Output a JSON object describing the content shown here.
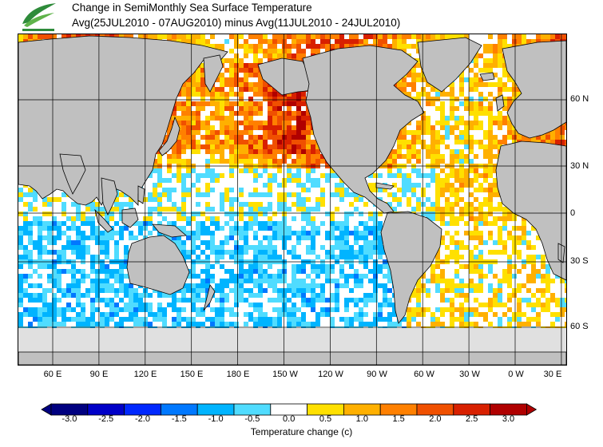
{
  "header": {
    "title_line1": "Change in SemiMonthly Sea Surface Temperature",
    "title_line2": "Avg(25JUL2010 - 07AUG2010) minus Avg(11JUL2010 - 24JUL2010)"
  },
  "map": {
    "land_color": "#c0c0c0",
    "ice_color": "#e0e0e0",
    "grid_color": "#000000",
    "lat_labels": [
      "60 N",
      "30 N",
      "0",
      "30 S",
      "60 S"
    ],
    "lon_labels": [
      "60 E",
      "90 E",
      "120 E",
      "150 E",
      "180 E",
      "150 W",
      "120 W",
      "90 W",
      "60 W",
      "30 W",
      "0 W",
      "30 E"
    ]
  },
  "colorbar": {
    "label": "Temperature change  (c)",
    "ticks": [
      "-3.0",
      "-2.5",
      "-2.0",
      "-1.5",
      "-1.0",
      "-0.5",
      "0.0",
      "0.5",
      "1.0",
      "1.5",
      "2.0",
      "2.5",
      "3.0"
    ],
    "colors": [
      "#000080",
      "#0000c8",
      "#0028ff",
      "#0078ff",
      "#00b4ff",
      "#50dcff",
      "#ffffff",
      "#ffe000",
      "#ffb000",
      "#ff8000",
      "#f05000",
      "#d82000",
      "#b00000"
    ]
  },
  "icons": {
    "logo": "leaf-logo-icon"
  }
}
